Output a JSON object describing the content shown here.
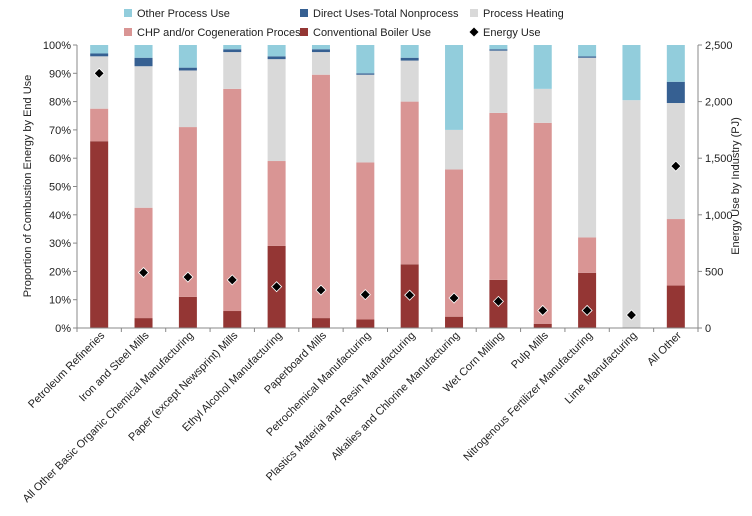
{
  "chart_data": {
    "type": "bar",
    "stacked": true,
    "categories": [
      "Petroleum Refineries",
      "Iron and Steel Mills",
      "All Other Basic Organic Chemical Manufacturing",
      "Paper (except Newsprint) Mills",
      "Ethyl Alcohol Manufacturing",
      "Paperboard Mills",
      "Petrochemical Manufacturing",
      "Plastics Material and Resin Manufacturing",
      "Alkalies and Chlorine Manufacturing",
      "Wet Corn Milling",
      "Pulp Mills",
      "Nitrogenous Fertilizer Manufacturing",
      "Lime Manufacturing",
      "All Other"
    ],
    "series": [
      {
        "name": "Conventional Boiler Use",
        "color": "#943634",
        "values": [
          66,
          3.5,
          11,
          6,
          29,
          3.5,
          3,
          22.5,
          4,
          17,
          1.5,
          19.5,
          0,
          15
        ]
      },
      {
        "name": "CHP and/or Cogeneration Process",
        "color": "#d99594",
        "values": [
          11.5,
          39,
          60,
          78.5,
          30,
          86,
          55.5,
          57.5,
          52,
          59,
          71,
          12.5,
          0,
          23.5
        ]
      },
      {
        "name": "Process Heating",
        "color": "#d9d9d9",
        "values": [
          18.5,
          50,
          20,
          13,
          36,
          8,
          31,
          14.5,
          14,
          22,
          12,
          63.5,
          80.5,
          41
        ]
      },
      {
        "name": "Direct Uses-Total Nonprocess",
        "color": "#366092",
        "values": [
          1,
          3,
          1,
          1,
          1,
          1,
          0.5,
          1,
          0,
          0.5,
          0,
          0.5,
          0,
          7.5
        ]
      },
      {
        "name": "Other Process Use",
        "color": "#92cddc",
        "values": [
          3,
          4.5,
          8,
          1.5,
          4,
          1.5,
          10,
          4.5,
          30,
          1.5,
          15.5,
          4,
          19.5,
          13
        ]
      }
    ],
    "energy_use": {
      "name": "Energy Use",
      "values": [
        2250,
        490,
        450,
        425,
        365,
        335,
        295,
        290,
        265,
        235,
        155,
        155,
        115,
        1430
      ]
    },
    "ylabel": "Proportion of Combustion Energy by End Use",
    "y2label": "Energy Use by Industry (PJ)",
    "ylim": [
      0,
      100
    ],
    "y2lim": [
      0,
      2500
    ],
    "yticks": [
      "0%",
      "10%",
      "20%",
      "30%",
      "40%",
      "50%",
      "60%",
      "70%",
      "80%",
      "90%",
      "100%"
    ],
    "y2ticks": [
      "0",
      "500",
      "1,000",
      "1,500",
      "2,000",
      "2,500"
    ],
    "legend_position": "top",
    "legend": [
      {
        "label": "Other Process Use",
        "color": "#92cddc",
        "marker": "square"
      },
      {
        "label": "Direct Uses-Total Nonprocess",
        "color": "#366092",
        "marker": "square"
      },
      {
        "label": "Process Heating",
        "color": "#d9d9d9",
        "marker": "square"
      },
      {
        "label": "CHP and/or Cogeneration Process",
        "color": "#d99594",
        "marker": "square"
      },
      {
        "label": "Conventional Boiler Use",
        "color": "#943634",
        "marker": "square"
      },
      {
        "label": "Energy Use",
        "color": "#000000",
        "marker": "diamond"
      }
    ]
  }
}
